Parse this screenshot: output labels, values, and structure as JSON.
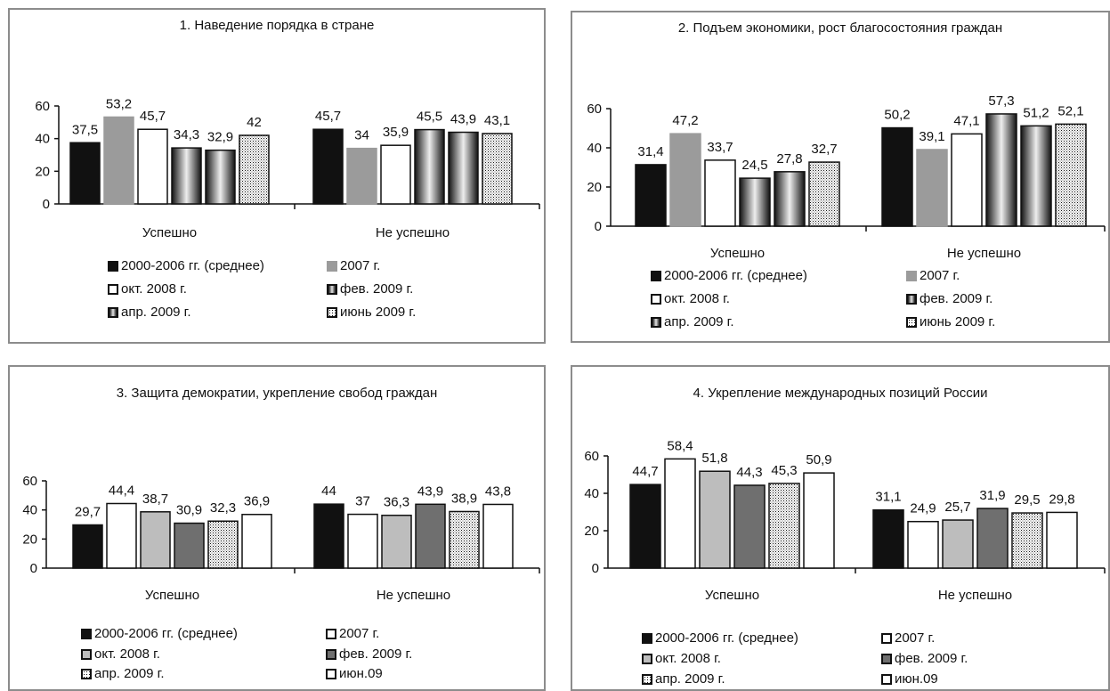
{
  "colors": {
    "black": "#111111",
    "gray": "#9b9b9b",
    "white": "#ffffff",
    "silver": "#bdbdbd",
    "dark": "#6f6f6f",
    "border": "#8c8c8c"
  },
  "chart_data": [
    {
      "type": "bar",
      "title": "1. Наведение порядка в стране",
      "categories": [
        "Успешно",
        "Не успешно"
      ],
      "yticks": [
        "0",
        "20",
        "40",
        "60"
      ],
      "ylim": [
        0,
        60
      ],
      "series": [
        {
          "name": "2000-2006 гг. (среднее)",
          "style": "black",
          "values": [
            37.5,
            45.7
          ],
          "labels": [
            "37,5",
            "45,7"
          ]
        },
        {
          "name": "2007 г.",
          "style": "gray",
          "values": [
            53.2,
            34
          ],
          "labels": [
            "53,2",
            "34"
          ]
        },
        {
          "name": "окт. 2008 г.",
          "style": "white",
          "values": [
            45.7,
            35.9
          ],
          "labels": [
            "45,7",
            "35,9"
          ]
        },
        {
          "name": "фев. 2009 г.",
          "style": "grad",
          "values": [
            34.3,
            45.5
          ],
          "labels": [
            "34,3",
            "45,5"
          ]
        },
        {
          "name": "апр. 2009 г.",
          "style": "grad",
          "values": [
            32.9,
            43.9
          ],
          "labels": [
            "32,9",
            "43,9"
          ]
        },
        {
          "name": "июнь 2009 г.",
          "style": "dot",
          "values": [
            42,
            43.1
          ],
          "labels": [
            "42",
            "43,1"
          ]
        }
      ]
    },
    {
      "type": "bar",
      "title": "2. Подъем экономики, рост благосостояния граждан",
      "categories": [
        "Успешно",
        "Не успешно"
      ],
      "yticks": [
        "0",
        "20",
        "40",
        "60"
      ],
      "ylim": [
        0,
        60
      ],
      "series": [
        {
          "name": "2000-2006 гг. (среднее)",
          "style": "black",
          "values": [
            31.4,
            50.2
          ],
          "labels": [
            "31,4",
            "50,2"
          ]
        },
        {
          "name": "2007 г.",
          "style": "gray",
          "values": [
            47.2,
            39.1
          ],
          "labels": [
            "47,2",
            "39,1"
          ]
        },
        {
          "name": "окт. 2008 г.",
          "style": "white",
          "values": [
            33.7,
            47.1
          ],
          "labels": [
            "33,7",
            "47,1"
          ]
        },
        {
          "name": "фев. 2009 г.",
          "style": "grad",
          "values": [
            24.5,
            57.3
          ],
          "labels": [
            "24,5",
            "57,3"
          ]
        },
        {
          "name": "апр. 2009 г.",
          "style": "grad",
          "values": [
            27.8,
            51.2
          ],
          "labels": [
            "27,8",
            "51,2"
          ]
        },
        {
          "name": "июнь 2009 г.",
          "style": "dot",
          "values": [
            32.7,
            52.1
          ],
          "labels": [
            "32,7",
            "52,1"
          ]
        }
      ]
    },
    {
      "type": "bar",
      "title": "3. Защита демократии, укрепление свобод граждан",
      "categories": [
        "Успешно",
        "Не успешно"
      ],
      "yticks": [
        "0",
        "20",
        "40",
        "60"
      ],
      "ylim": [
        0,
        60
      ],
      "series": [
        {
          "name": "2000-2006 гг. (среднее)",
          "style": "black",
          "values": [
            29.7,
            44
          ],
          "labels": [
            "29,7",
            "44"
          ]
        },
        {
          "name": "2007 г.",
          "style": "white",
          "values": [
            44.4,
            37
          ],
          "labels": [
            "44,4",
            "37"
          ]
        },
        {
          "name": "окт. 2008 г.",
          "style": "silver",
          "values": [
            38.7,
            36.3
          ],
          "labels": [
            "38,7",
            "36,3"
          ]
        },
        {
          "name": "фев. 2009 г.",
          "style": "dark",
          "values": [
            30.9,
            43.9
          ],
          "labels": [
            "30,9",
            "43,9"
          ]
        },
        {
          "name": "апр. 2009 г.",
          "style": "dot",
          "values": [
            32.3,
            38.9
          ],
          "labels": [
            "32,3",
            "38,9"
          ]
        },
        {
          "name": "июн.09",
          "style": "white",
          "values": [
            36.9,
            43.8
          ],
          "labels": [
            "36,9",
            "43,8"
          ]
        }
      ]
    },
    {
      "type": "bar",
      "title": "4. Укрепление международных позиций России",
      "categories": [
        "Успешно",
        "Не успешно"
      ],
      "yticks": [
        "0",
        "20",
        "40",
        "60"
      ],
      "ylim": [
        0,
        60
      ],
      "series": [
        {
          "name": "2000-2006 гг. (среднее)",
          "style": "black",
          "values": [
            44.7,
            31.1
          ],
          "labels": [
            "44,7",
            "31,1"
          ]
        },
        {
          "name": "2007 г.",
          "style": "white",
          "values": [
            58.4,
            24.9
          ],
          "labels": [
            "58,4",
            "24,9"
          ]
        },
        {
          "name": "окт. 2008 г.",
          "style": "silver",
          "values": [
            51.8,
            25.7
          ],
          "labels": [
            "51,8",
            "25,7"
          ]
        },
        {
          "name": "фев. 2009 г.",
          "style": "dark",
          "values": [
            44.3,
            31.9
          ],
          "labels": [
            "44,3",
            "31,9"
          ]
        },
        {
          "name": "апр. 2009 г.",
          "style": "dot",
          "values": [
            45.3,
            29.5
          ],
          "labels": [
            "45,3",
            "29,5"
          ]
        },
        {
          "name": "июн.09",
          "style": "white",
          "values": [
            50.9,
            29.8
          ],
          "labels": [
            "50,9",
            "29,8"
          ]
        }
      ]
    }
  ]
}
